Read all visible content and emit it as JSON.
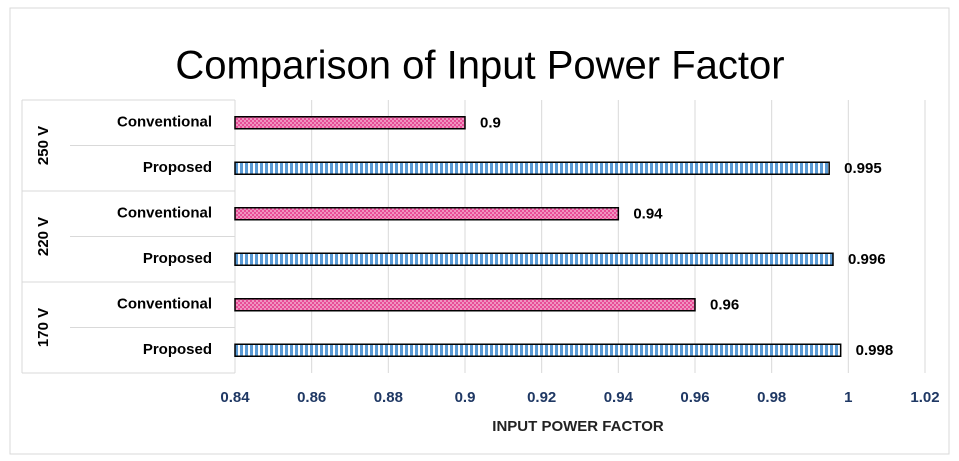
{
  "chart_data": {
    "type": "bar",
    "orientation": "horizontal",
    "title": "Comparison of Input Power Factor",
    "x_label": "INPUT POWER FACTOR",
    "categories": [
      "250 V",
      "220 V",
      "170 V"
    ],
    "series": [
      {
        "name": "Conventional",
        "color": "#e84d97",
        "values": [
          0.9,
          0.94,
          0.96
        ]
      },
      {
        "name": "Proposed",
        "color": "#5b9bd5",
        "values": [
          0.995,
          0.996,
          0.998
        ]
      }
    ],
    "xlim": [
      0.84,
      1.02
    ],
    "xticks": [
      0.84,
      0.86,
      0.88,
      0.9,
      0.92,
      0.94,
      0.96,
      0.98,
      1,
      1.02
    ],
    "grid": true
  }
}
